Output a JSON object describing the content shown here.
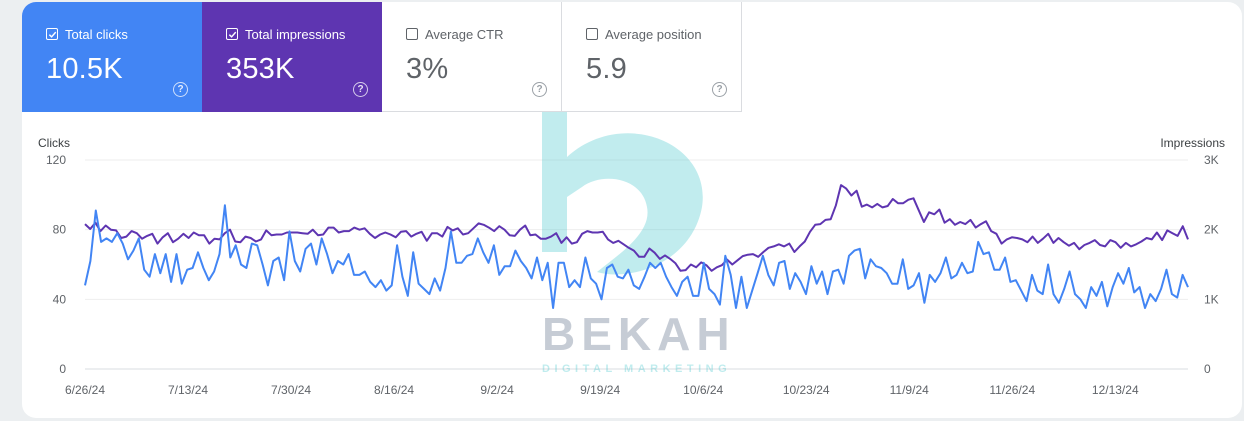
{
  "metrics": [
    {
      "label": "Total clicks",
      "value": "10.5K",
      "checked": true,
      "color": "#4285f4"
    },
    {
      "label": "Total impressions",
      "value": "353K",
      "checked": true,
      "color": "#5e35b1"
    },
    {
      "label": "Average CTR",
      "value": "3%",
      "checked": false,
      "color": "#ffffff"
    },
    {
      "label": "Average position",
      "value": "5.9",
      "checked": false,
      "color": "#ffffff"
    }
  ],
  "help_glyph": "?",
  "chart_data": {
    "type": "line",
    "left_axis": {
      "title": "Clicks",
      "ticks": [
        "120",
        "80",
        "40",
        "0"
      ],
      "range": [
        0,
        120
      ]
    },
    "right_axis": {
      "title": "Impressions",
      "ticks": [
        "3K",
        "2K",
        "1K",
        "0"
      ],
      "range": [
        0,
        3000
      ]
    },
    "x_ticks": [
      "6/26/24",
      "7/13/24",
      "7/30/24",
      "8/16/24",
      "9/2/24",
      "9/19/24",
      "10/6/24",
      "10/23/24",
      "11/9/24",
      "11/26/24",
      "12/13/24"
    ],
    "x_range": [
      "2024-06-26",
      "2024-12-25"
    ],
    "grid": true,
    "series": [
      {
        "name": "Clicks",
        "axis": "left",
        "color": "#4285f4",
        "values": [
          48,
          62,
          91,
          73,
          75,
          73,
          78,
          72,
          63,
          68,
          75,
          57,
          53,
          66,
          55,
          66,
          50,
          66,
          49,
          57,
          58,
          67,
          58,
          51,
          56,
          66,
          94,
          64,
          71,
          60,
          58,
          72,
          71,
          60,
          48,
          62,
          64,
          51,
          79,
          62,
          56,
          69,
          72,
          60,
          75,
          66,
          55,
          62,
          60,
          66,
          54,
          54,
          56,
          50,
          47,
          51,
          45,
          48,
          71,
          53,
          42,
          67,
          49,
          46,
          43,
          52,
          45,
          58,
          79,
          61,
          61,
          65,
          66,
          75,
          67,
          61,
          71,
          54,
          59,
          59,
          68,
          62,
          58,
          52,
          64,
          51,
          61,
          35,
          61,
          61,
          47,
          51,
          47,
          64,
          52,
          49,
          40,
          58,
          60,
          53,
          52,
          57,
          48,
          46,
          53,
          61,
          58,
          61,
          53,
          47,
          42,
          50,
          53,
          42,
          42,
          61,
          46,
          43,
          37,
          65,
          54,
          35,
          53,
          35,
          45,
          55,
          65,
          54,
          48,
          61,
          62,
          46,
          55,
          50,
          43,
          59,
          49,
          56,
          43,
          56,
          57,
          49,
          65,
          68,
          69,
          52,
          63,
          59,
          58,
          55,
          49,
          49,
          63,
          46,
          48,
          55,
          38,
          54,
          50,
          55,
          64,
          52,
          54,
          61,
          55,
          56,
          73,
          66,
          67,
          57,
          57,
          64,
          50,
          51,
          45,
          39,
          54,
          45,
          43,
          60,
          43,
          38,
          46,
          56,
          43,
          40,
          35,
          47,
          42,
          50,
          36,
          47,
          55,
          49,
          58,
          44,
          47,
          35,
          43,
          39,
          46,
          57,
          43,
          41,
          54,
          47
        ]
      },
      {
        "name": "Impressions",
        "axis": "right",
        "color": "#5e35b1",
        "values": [
          2080,
          2010,
          2100,
          1980,
          2060,
          2000,
          1990,
          1880,
          1900,
          1980,
          1950,
          1870,
          1910,
          1940,
          1800,
          1890,
          1950,
          1820,
          1870,
          1940,
          1880,
          1960,
          1920,
          1920,
          1800,
          1870,
          1860,
          1950,
          2000,
          1830,
          1820,
          1900,
          1880,
          1830,
          1860,
          1990,
          1920,
          1930,
          1930,
          1960,
          1960,
          1960,
          1950,
          1940,
          2000,
          1920,
          1930,
          2030,
          2030,
          1960,
          1980,
          1980,
          2030,
          2000,
          2020,
          1940,
          1880,
          1930,
          1960,
          1930,
          1890,
          1970,
          1980,
          1900,
          1940,
          1970,
          1840,
          1950,
          1950,
          1900,
          2040,
          1990,
          2020,
          1930,
          1950,
          2020,
          2090,
          2070,
          2030,
          1980,
          2050,
          2000,
          1920,
          1910,
          2000,
          2060,
          1920,
          1930,
          1870,
          1870,
          1900,
          1950,
          1810,
          1890,
          1800,
          1820,
          1940,
          1980,
          1960,
          1960,
          1970,
          1860,
          1810,
          1840,
          1790,
          1740,
          1700,
          1610,
          1610,
          1730,
          1670,
          1580,
          1630,
          1580,
          1520,
          1410,
          1420,
          1500,
          1460,
          1530,
          1490,
          1410,
          1460,
          1490,
          1570,
          1500,
          1560,
          1620,
          1640,
          1650,
          1610,
          1680,
          1740,
          1760,
          1790,
          1760,
          1800,
          1680,
          1760,
          1830,
          1970,
          2070,
          2080,
          2140,
          2150,
          2350,
          2640,
          2590,
          2490,
          2560,
          2330,
          2360,
          2320,
          2370,
          2320,
          2340,
          2440,
          2380,
          2380,
          2430,
          2450,
          2280,
          2110,
          2250,
          2220,
          2290,
          2100,
          2150,
          2070,
          2110,
          2080,
          2140,
          2030,
          2080,
          2120,
          1980,
          1940,
          1800,
          1860,
          1890,
          1880,
          1860,
          1820,
          1900,
          1810,
          1870,
          1940,
          1810,
          1880,
          1820,
          1770,
          1810,
          1720,
          1780,
          1810,
          1850,
          1780,
          1760,
          1850,
          1820,
          1740,
          1810,
          1760,
          1790,
          1830,
          1880,
          1860,
          1960,
          1850,
          1990,
          1950,
          1910,
          2050,
          1860
        ]
      }
    ]
  }
}
